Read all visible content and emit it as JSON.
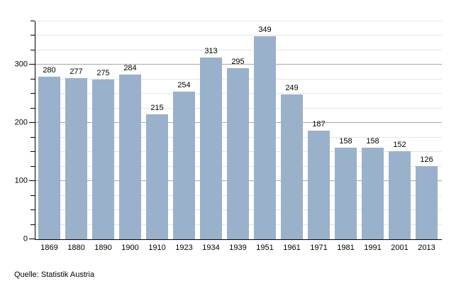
{
  "chart_data": {
    "type": "bar",
    "title": "",
    "xlabel": "",
    "ylabel": "",
    "categories": [
      "1869",
      "1880",
      "1890",
      "1900",
      "1910",
      "1923",
      "1934",
      "1939",
      "1951",
      "1961",
      "1971",
      "1981",
      "1991",
      "2001",
      "2013"
    ],
    "values": [
      280,
      277,
      275,
      284,
      215,
      254,
      313,
      295,
      349,
      249,
      187,
      158,
      158,
      152,
      126
    ],
    "ylim": [
      0,
      375
    ],
    "yticks_major": [
      0,
      100,
      200,
      300
    ],
    "gridline_step": 25,
    "grid_on": true,
    "legend_position": "none",
    "colors": {
      "bar": "#9ab1cb",
      "grid_minor": "#e4e4e4",
      "grid_major": "#a9a9a9",
      "axis": "#000000",
      "text": "#000000",
      "background": "#ffffff"
    }
  },
  "source": {
    "label": "Quelle: Statistik Austria"
  }
}
